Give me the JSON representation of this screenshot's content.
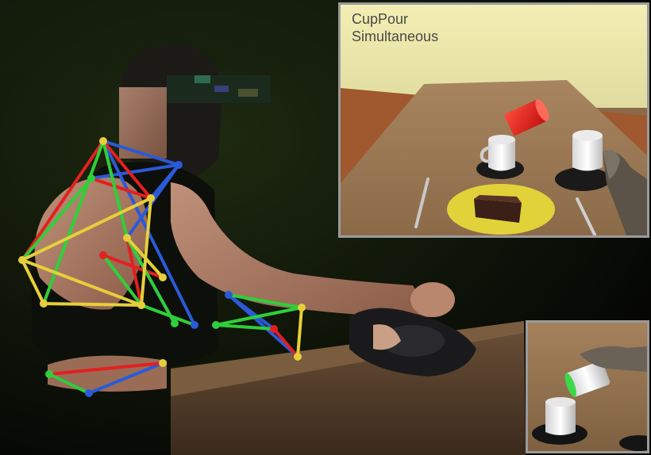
{
  "inset_main": {
    "task_label": "CupPour",
    "mode_label": "Simultaneous"
  },
  "colors": {
    "skeleton_red": "#e32020",
    "skeleton_green": "#2fcf3a",
    "skeleton_blue": "#2a5ad8",
    "skeleton_yellow": "#e6cf3a",
    "virtual_cup_red": "#e81818",
    "plate_yellow": "#e2d23a",
    "table_wood": "#9b7752",
    "inset_border": "#9a9a9a",
    "label_text": "#4a4a44"
  }
}
